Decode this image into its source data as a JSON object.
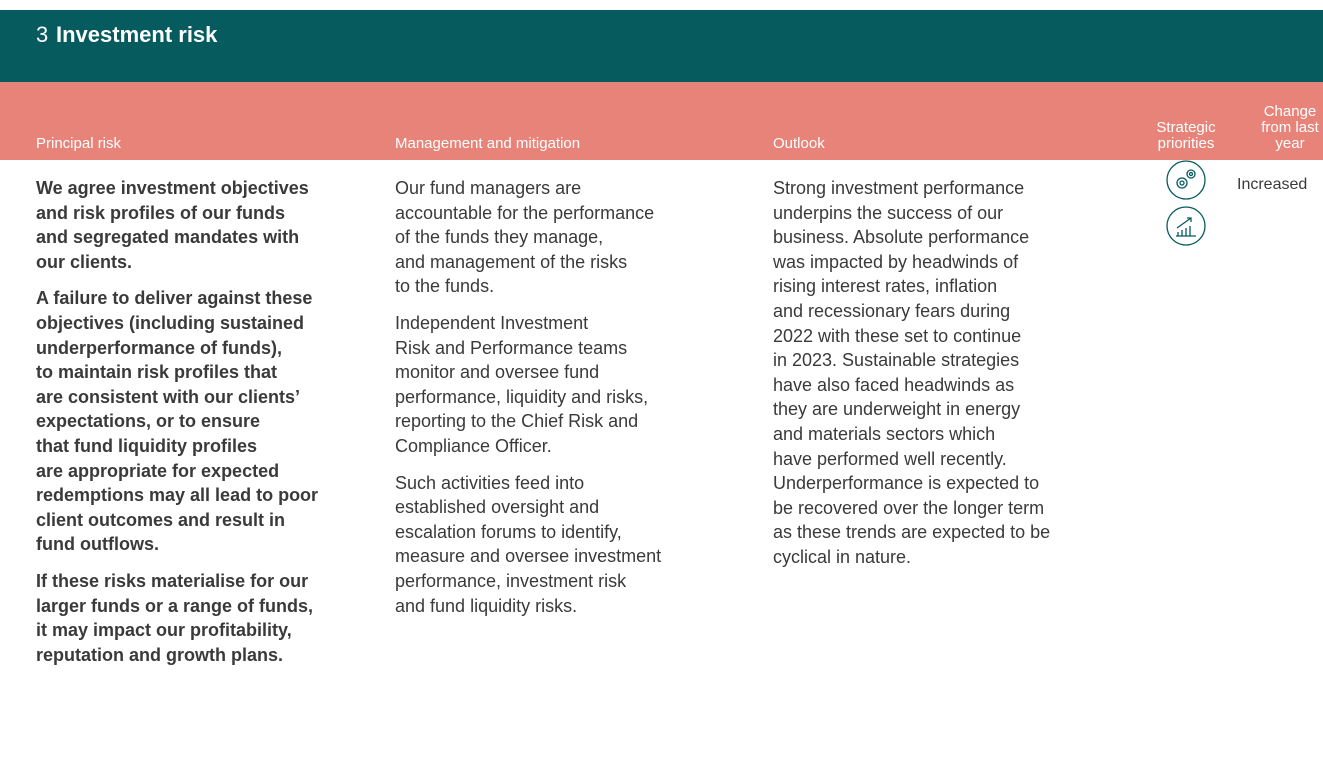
{
  "header": {
    "number": "3",
    "title": "Investment risk"
  },
  "columns": [
    "Principal risk",
    "Management and mitigation",
    "Outlook",
    [
      "Strategic",
      "priorities"
    ],
    [
      "Change",
      "from last",
      "year"
    ]
  ],
  "principal_risk": [
    [
      "We agree investment objectives",
      "and risk profiles of our funds",
      "and segregated mandates with",
      "our clients."
    ],
    [
      "A failure to deliver against these",
      "objectives (including sustained",
      "underperformance of funds),",
      "to maintain risk profiles that",
      "are consistent with our clients’",
      "expectations, or to ensure",
      "that fund liquidity profiles",
      "are appropriate for expected",
      "redemptions may all lead to poor",
      "client outcomes and result in",
      "fund outflows."
    ],
    [
      "If these risks materialise for our",
      "larger funds or a range of funds,",
      "it may impact our profitability,",
      "reputation and growth plans."
    ]
  ],
  "management": [
    [
      "Our fund managers are",
      "accountable for the performance",
      "of the funds they manage,",
      "and management of the risks",
      "to the funds."
    ],
    [
      "Independent Investment",
      "Risk and Performance teams",
      "monitor and oversee fund",
      "performance, liquidity and risks,",
      "reporting to the Chief Risk and",
      "Compliance Officer."
    ],
    [
      "Such activities feed into",
      "established oversight and",
      "escalation forums to identify,",
      "measure and oversee investment",
      "performance, investment risk",
      "and fund liquidity risks."
    ]
  ],
  "outlook": [
    [
      "Strong investment performance",
      "underpins the success of our",
      "business. Absolute performance",
      "was impacted by headwinds of",
      "rising interest rates, inflation",
      "and recessionary fears during",
      "2022 with these set to continue",
      "in 2023. Sustainable strategies",
      "have also faced headwinds as",
      "they are underweight in energy",
      "and materials sectors which",
      "have performed well recently.",
      "Underperformance is expected to",
      "be recovered over the longer term",
      "as these trends are expected to be",
      "cyclical in nature."
    ]
  ],
  "change": "Increased"
}
